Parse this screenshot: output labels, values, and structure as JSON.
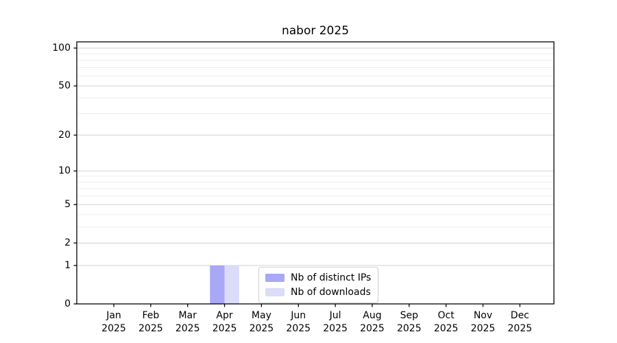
{
  "chart_data": {
    "type": "bar",
    "title": "nabor 2025",
    "x_categories": [
      {
        "month": "Jan",
        "year": "2025"
      },
      {
        "month": "Feb",
        "year": "2025"
      },
      {
        "month": "Mar",
        "year": "2025"
      },
      {
        "month": "Apr",
        "year": "2025"
      },
      {
        "month": "May",
        "year": "2025"
      },
      {
        "month": "Jun",
        "year": "2025"
      },
      {
        "month": "Jul",
        "year": "2025"
      },
      {
        "month": "Aug",
        "year": "2025"
      },
      {
        "month": "Sep",
        "year": "2025"
      },
      {
        "month": "Oct",
        "year": "2025"
      },
      {
        "month": "Nov",
        "year": "2025"
      },
      {
        "month": "Dec",
        "year": "2025"
      }
    ],
    "y_axis": {
      "scale": "log1p",
      "major_ticks": [
        0,
        1,
        2,
        5,
        10,
        20,
        50,
        100
      ],
      "minor_gridlines": [
        3,
        4,
        6,
        7,
        8,
        9,
        30,
        40,
        60,
        70,
        80,
        90
      ],
      "max": 112
    },
    "series": [
      {
        "name": "Nb of distinct IPs",
        "color": "#a8a8f6",
        "values": [
          0,
          0,
          0,
          1,
          0,
          0,
          0,
          0,
          0,
          0,
          0,
          0
        ]
      },
      {
        "name": "Nb of downloads",
        "color": "#dbdbfa",
        "values": [
          0,
          0,
          0,
          1,
          0,
          0,
          0,
          0,
          0,
          0,
          0,
          0
        ]
      }
    ],
    "legend": {
      "position": "lower-center",
      "entries": [
        "Nb of distinct IPs",
        "Nb of downloads"
      ]
    },
    "grid": true
  },
  "colors": {
    "background": "#ffffff",
    "axis": "#000000",
    "major_grid": "#d2d2d2",
    "minor_grid": "#ededed",
    "text": "#000000"
  }
}
